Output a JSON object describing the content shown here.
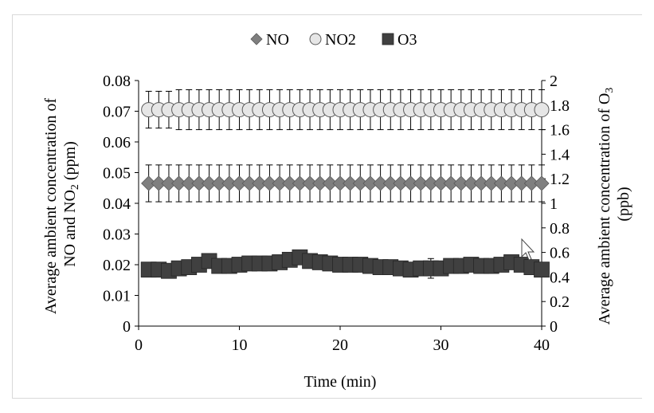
{
  "chart_data": {
    "type": "scatter",
    "xlabel": "Time (min)",
    "ylabel_left": [
      "Average ambient concentration of",
      "NO and NO",
      "2",
      " (ppm)"
    ],
    "ylabel_right": [
      "Average ambient concentration of O",
      "3",
      "(ppb)"
    ],
    "xlim": [
      0,
      40
    ],
    "ylim_left": [
      0,
      0.08
    ],
    "ylim_right": [
      0,
      2
    ],
    "x_ticks": [
      "0",
      "10",
      "20",
      "30",
      "40"
    ],
    "y_left_ticks": [
      "0",
      "0.01",
      "0.02",
      "0.03",
      "0.04",
      "0.05",
      "0.06",
      "0.07",
      "0.08"
    ],
    "y_right_ticks": [
      "0",
      "0.2",
      "0.4",
      "0.6",
      "0.8",
      "1",
      "1.2",
      "1.4",
      "1.6",
      "1.8",
      "2"
    ],
    "legend_position": "top-center",
    "grid": false,
    "x": [
      1,
      2,
      3,
      4,
      5,
      6,
      7,
      8,
      9,
      10,
      11,
      12,
      13,
      14,
      15,
      16,
      17,
      18,
      19,
      20,
      21,
      22,
      23,
      24,
      25,
      26,
      27,
      28,
      29,
      30,
      31,
      32,
      33,
      34,
      35,
      36,
      37,
      38,
      39,
      40
    ],
    "series": [
      {
        "name": "NO",
        "axis": "left",
        "marker": "diamond",
        "color": "#7f7f7f",
        "values": [
          0.0465,
          0.0465,
          0.0465,
          0.0465,
          0.0465,
          0.0465,
          0.0465,
          0.0465,
          0.0465,
          0.0465,
          0.0465,
          0.0465,
          0.0465,
          0.0465,
          0.0465,
          0.0465,
          0.0465,
          0.0465,
          0.0465,
          0.0465,
          0.0465,
          0.0465,
          0.0465,
          0.0465,
          0.0465,
          0.0465,
          0.0465,
          0.0465,
          0.0465,
          0.0465,
          0.0465,
          0.0465,
          0.0465,
          0.0465,
          0.0465,
          0.0465,
          0.0465,
          0.0465,
          0.0465,
          0.0465
        ],
        "error": [
          0.006,
          0.006,
          0.006,
          0.006,
          0.006,
          0.006,
          0.006,
          0.006,
          0.006,
          0.006,
          0.006,
          0.006,
          0.006,
          0.006,
          0.006,
          0.006,
          0.006,
          0.006,
          0.006,
          0.006,
          0.006,
          0.006,
          0.006,
          0.006,
          0.006,
          0.006,
          0.006,
          0.006,
          0.006,
          0.006,
          0.006,
          0.006,
          0.006,
          0.006,
          0.006,
          0.006,
          0.006,
          0.006,
          0.006,
          0.006
        ]
      },
      {
        "name": "NO2",
        "axis": "left",
        "marker": "circle",
        "color": "#e6e6e6",
        "values": [
          0.0705,
          0.0705,
          0.0705,
          0.0705,
          0.0705,
          0.0705,
          0.0705,
          0.0705,
          0.0705,
          0.0705,
          0.0705,
          0.0705,
          0.0705,
          0.0705,
          0.0705,
          0.0705,
          0.0705,
          0.0705,
          0.0705,
          0.0705,
          0.0705,
          0.0705,
          0.0705,
          0.0705,
          0.0705,
          0.0705,
          0.0705,
          0.0705,
          0.0705,
          0.0705,
          0.0705,
          0.0705,
          0.0705,
          0.0705,
          0.0705,
          0.0705,
          0.0705,
          0.0705,
          0.0705,
          0.0705
        ],
        "error": [
          0.006,
          0.006,
          0.006,
          0.0065,
          0.0065,
          0.0065,
          0.0065,
          0.0065,
          0.0065,
          0.0065,
          0.0065,
          0.0065,
          0.0065,
          0.0065,
          0.0065,
          0.0065,
          0.0065,
          0.0065,
          0.0065,
          0.0065,
          0.0065,
          0.0065,
          0.0065,
          0.0065,
          0.0065,
          0.0065,
          0.0065,
          0.0065,
          0.0065,
          0.0065,
          0.0065,
          0.0065,
          0.0065,
          0.0065,
          0.0065,
          0.0065,
          0.0065,
          0.0065,
          0.0065,
          0.0065
        ]
      },
      {
        "name": "O3",
        "axis": "right",
        "marker": "square",
        "color": "#404040",
        "values": [
          0.46,
          0.46,
          0.45,
          0.47,
          0.48,
          0.5,
          0.53,
          0.49,
          0.49,
          0.5,
          0.51,
          0.51,
          0.51,
          0.52,
          0.54,
          0.56,
          0.53,
          0.52,
          0.51,
          0.5,
          0.5,
          0.5,
          0.49,
          0.48,
          0.48,
          0.47,
          0.46,
          0.47,
          0.47,
          0.47,
          0.49,
          0.49,
          0.5,
          0.49,
          0.49,
          0.5,
          0.52,
          0.5,
          0.48,
          0.46
        ],
        "error": [
          0.02,
          0.02,
          0.02,
          0.02,
          0.02,
          0.02,
          0.02,
          0.02,
          0.02,
          0.02,
          0.02,
          0.02,
          0.02,
          0.02,
          0.02,
          0.02,
          0.02,
          0.02,
          0.02,
          0.02,
          0.02,
          0.02,
          0.02,
          0.02,
          0.02,
          0.02,
          0.03,
          0.03,
          0.08,
          0.04,
          0.02,
          0.02,
          0.02,
          0.02,
          0.02,
          0.02,
          0.02,
          0.02,
          0.02,
          0.02
        ]
      }
    ]
  }
}
